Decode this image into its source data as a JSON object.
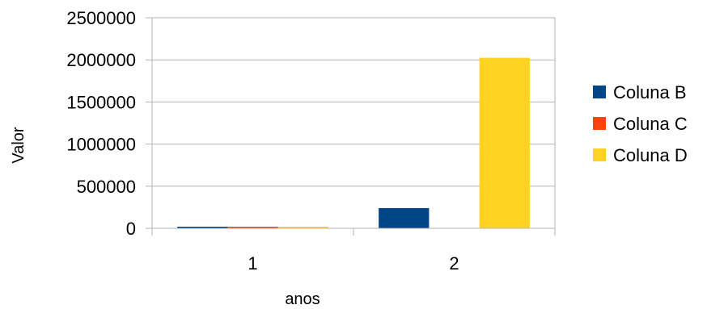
{
  "chart_data": {
    "type": "bar",
    "categories": [
      "1",
      "2"
    ],
    "series": [
      {
        "name": "Coluna B",
        "values": [
          12000,
          240000
        ],
        "color": "#004586"
      },
      {
        "name": "Coluna C",
        "values": [
          10000,
          0
        ],
        "color": "#FF420E"
      },
      {
        "name": "Coluna D",
        "values": [
          9000,
          2025000
        ],
        "color": "#FFD320"
      }
    ],
    "xlabel": "anos",
    "ylabel": "Valor",
    "ylim": [
      0,
      2500000
    ],
    "yticks": [
      0,
      500000,
      1000000,
      1500000,
      2000000,
      2500000
    ],
    "ytick_labels": [
      "0",
      "500000",
      "1000000",
      "1500000",
      "2000000",
      "2500000"
    ],
    "grid": true,
    "legend_position": "right"
  }
}
